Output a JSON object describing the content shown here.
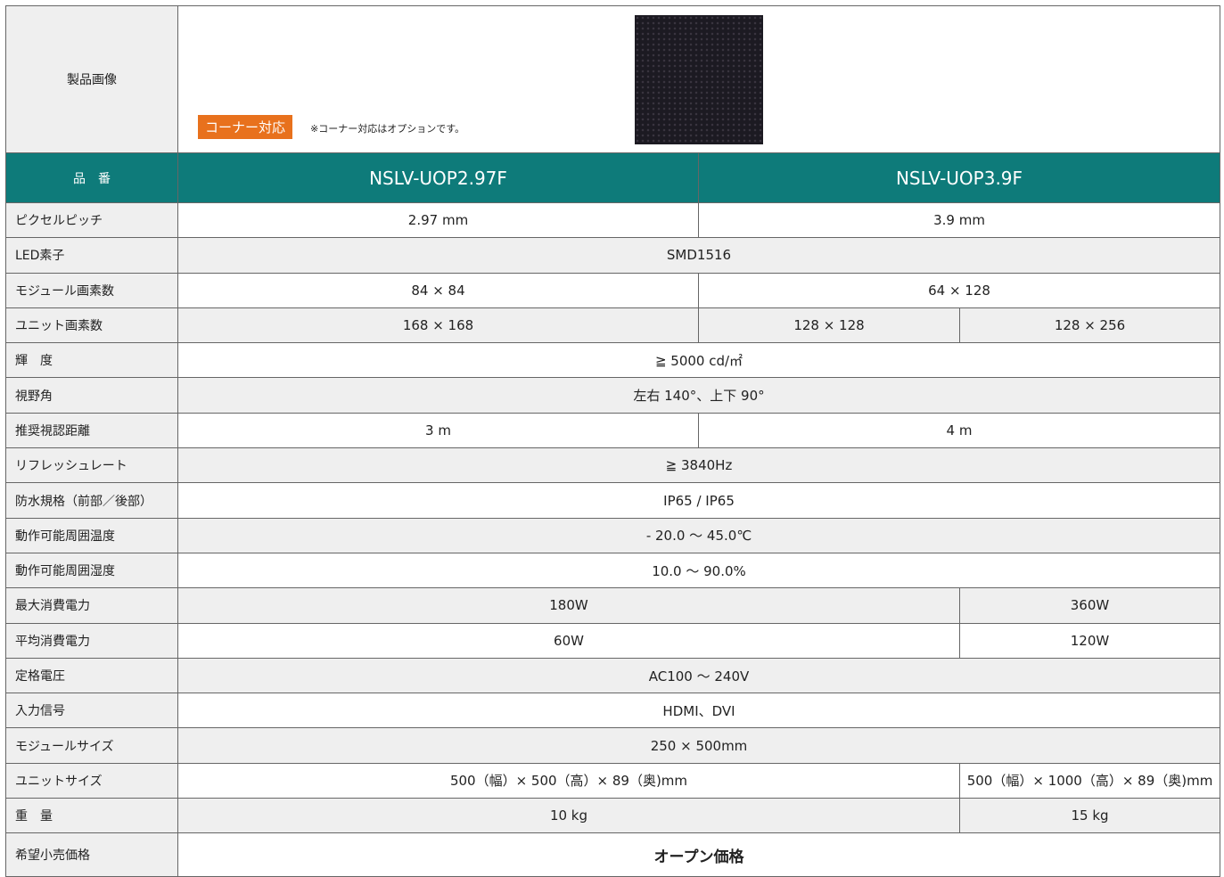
{
  "image_row": {
    "label": "製品画像",
    "badge": "コーナー対応",
    "note": "※コーナー対応はオプションです。"
  },
  "header": {
    "label": "品　番",
    "models": [
      "NSLV-UOP2.97F",
      "NSLV-UOP3.9F"
    ]
  },
  "rows": [
    {
      "label": "ピクセルピッチ",
      "cells": [
        "2.97 mm",
        "3.9 mm"
      ]
    },
    {
      "label": "LED素子",
      "cells": [
        "SMD1516"
      ]
    },
    {
      "label": "モジュール画素数",
      "cells": [
        "84 × 84",
        "64 × 128"
      ]
    },
    {
      "label": "ユニット画素数",
      "cells": [
        "168 × 168",
        "128 × 128",
        "128 × 256"
      ]
    },
    {
      "label": "輝　度",
      "cells": [
        "≧ 5000 cd/㎡"
      ]
    },
    {
      "label": "視野角",
      "cells": [
        "左右 140°、上下 90°"
      ]
    },
    {
      "label": "推奨視認距離",
      "cells": [
        "3 m",
        "4 m"
      ]
    },
    {
      "label": "リフレッシュレート",
      "cells": [
        "≧ 3840Hz"
      ]
    },
    {
      "label": "防水規格（前部／後部）",
      "cells": [
        "IP65 / IP65"
      ]
    },
    {
      "label": "動作可能周囲温度",
      "cells": [
        "- 20.0 ～ 45.0℃"
      ]
    },
    {
      "label": "動作可能周囲湿度",
      "cells": [
        "10.0 ～ 90.0%"
      ]
    },
    {
      "label": "最大消費電力",
      "cells": [
        "180W",
        "360W"
      ]
    },
    {
      "label": "平均消費電力",
      "cells": [
        "60W",
        "120W"
      ]
    },
    {
      "label": "定格電圧",
      "cells": [
        "AC100 ～ 240V"
      ]
    },
    {
      "label": "入力信号",
      "cells": [
        "HDMI、DVI"
      ]
    },
    {
      "label": "モジュールサイズ",
      "cells": [
        "250 × 500mm"
      ]
    },
    {
      "label": "ユニットサイズ",
      "cells": [
        "500（幅）× 500（高）× 89（奥)mm",
        "500（幅）× 1000（高）× 89（奥)mm"
      ]
    },
    {
      "label": "重　量",
      "cells": [
        "10 kg",
        "15 kg"
      ]
    },
    {
      "label": "希望小売価格",
      "cells": [
        "オープン価格"
      ]
    }
  ]
}
